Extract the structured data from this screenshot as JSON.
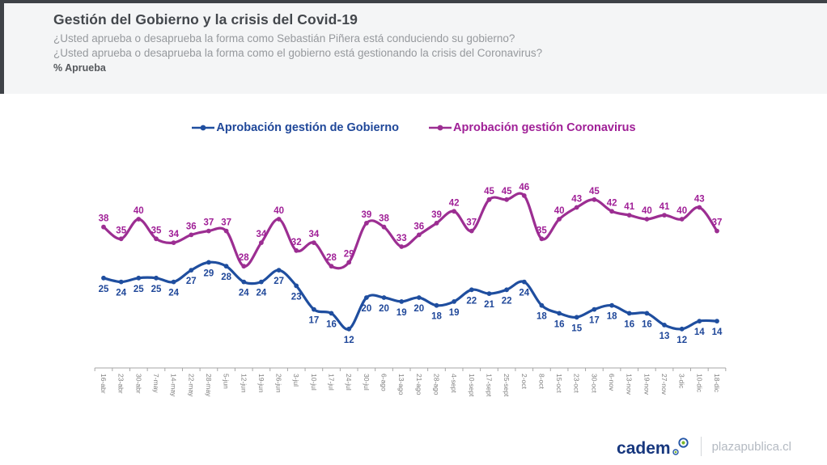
{
  "header": {
    "title": "Gestión del Gobierno y la crisis del Covid-19",
    "subtitle1": "¿Usted aprueba o desaprueba la forma como Sebastián Piñera está conduciendo su gobierno?",
    "subtitle2": "¿Usted aprueba o desaprueba la forma como el gobierno está gestionando la crisis del Coronavirus?",
    "metric_label": "% Aprueba"
  },
  "legend": [
    {
      "label": "Aprobación gestión de Gobierno",
      "color": "#1F4E9F"
    },
    {
      "label": "Aprobación gestión Coronavirus",
      "color": "#9C2E92"
    }
  ],
  "colors": {
    "gobierno_line": "#1F4E9F",
    "gobierno_label": "#1F4799",
    "coronavirus_line": "#9C2E92",
    "coronavirus_label": "#A02097",
    "axis": "#a6a6a6",
    "tick_label": "#7f7f7f",
    "header_bar": "#3e4247"
  },
  "chart_data": {
    "type": "line",
    "title": "Gestión del Gobierno y la crisis del Covid-19",
    "ylabel": "% Aprueba",
    "grid": false,
    "legend_position": "top",
    "data_labels": true,
    "ylim": [
      8,
      50
    ],
    "categories": [
      "16-abr",
      "23-abr",
      "30-abr",
      "7-may",
      "14-may",
      "22-may",
      "28-may",
      "5-jun",
      "12-jun",
      "19-jun",
      "26-jun",
      "3-jul",
      "10-jul",
      "17-jul",
      "24-jul",
      "30-jul",
      "6-ago",
      "13-ago",
      "21-ago",
      "28-ago",
      "4-sept",
      "10-sept",
      "17-sept",
      "25-sept",
      "2-oct",
      "8-oct",
      "15-oct",
      "23-oct",
      "30-oct",
      "6-nov",
      "13-nov",
      "19-nov",
      "27-nov",
      "3-dic",
      "10-dic",
      "18-dic"
    ],
    "series": [
      {
        "name": "Aprobación gestión de Gobierno",
        "color": "#1F4E9F",
        "label_color": "#1F4799",
        "label_side": "below",
        "values": [
          25,
          24,
          25,
          25,
          24,
          27,
          29,
          28,
          24,
          24,
          27,
          23,
          17,
          16,
          12,
          20,
          20,
          19,
          20,
          18,
          19,
          22,
          21,
          22,
          24,
          18,
          16,
          15,
          17,
          18,
          16,
          16,
          13,
          12,
          14,
          14
        ]
      },
      {
        "name": "Aprobación gestión Coronavirus",
        "color": "#9C2E92",
        "label_color": "#A02097",
        "label_side": "above",
        "values": [
          38,
          35,
          40,
          35,
          34,
          36,
          37,
          37,
          28,
          34,
          40,
          32,
          34,
          28,
          29,
          39,
          38,
          33,
          36,
          39,
          42,
          37,
          45,
          45,
          46,
          35,
          40,
          43,
          45,
          42,
          41,
          40,
          41,
          40,
          43,
          37
        ]
      }
    ]
  },
  "footer": {
    "brand": "cadem",
    "site": "plazapublica.cl"
  }
}
